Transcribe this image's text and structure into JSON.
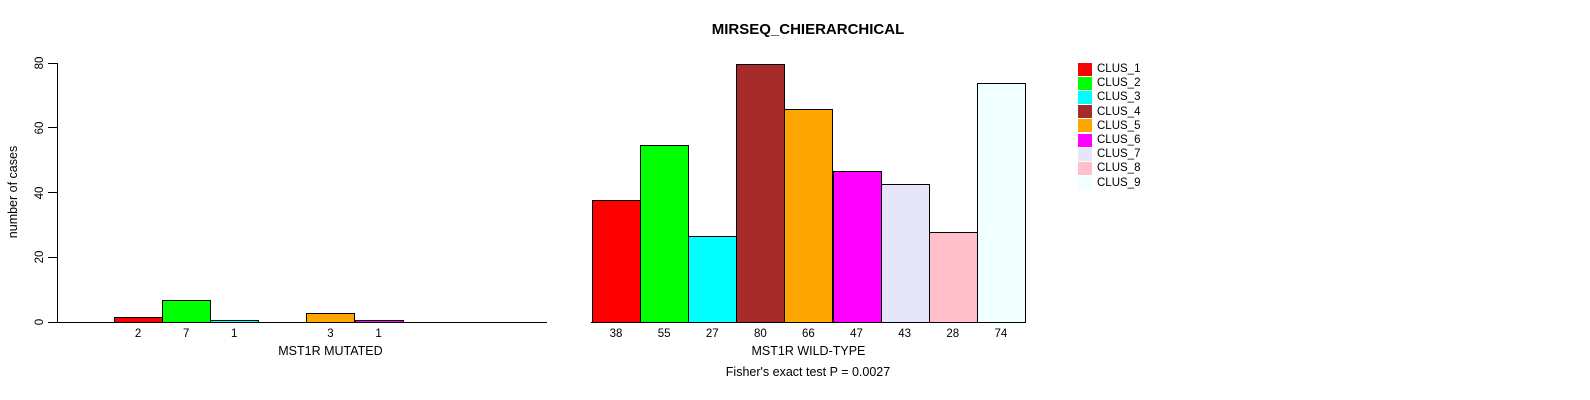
{
  "chart_data": {
    "type": "bar",
    "title": "MIRSEQ_CHIERARCHICAL",
    "ylabel": "number of cases",
    "xlabel": "",
    "ylim": [
      0,
      80
    ],
    "yticks": [
      0,
      20,
      40,
      60,
      80
    ],
    "grid": false,
    "clusters": [
      "CLUS_1",
      "CLUS_2",
      "CLUS_3",
      "CLUS_4",
      "CLUS_5",
      "CLUS_6",
      "CLUS_7",
      "CLUS_8",
      "CLUS_9"
    ],
    "colors": [
      "#FF0000",
      "#00FF00",
      "#00FFFF",
      "#A52A2A",
      "#FFA500",
      "#FF00FF",
      "#E6E6FA",
      "#FFC0CB",
      "#F0FFFF"
    ],
    "groups": [
      {
        "label": "MST1R MUTATED",
        "values": [
          2,
          7,
          1,
          0,
          3,
          1,
          0,
          0,
          0
        ]
      },
      {
        "label": "MST1R WILD-TYPE",
        "values": [
          38,
          55,
          27,
          80,
          66,
          47,
          43,
          28,
          74
        ]
      }
    ],
    "legend": {
      "position": "right",
      "entries": [
        "CLUS_1",
        "CLUS_2",
        "CLUS_3",
        "CLUS_4",
        "CLUS_5",
        "CLUS_6",
        "CLUS_7",
        "CLUS_8",
        "CLUS_9"
      ]
    },
    "annotation": "Fisher's exact test P = 0.0027"
  }
}
